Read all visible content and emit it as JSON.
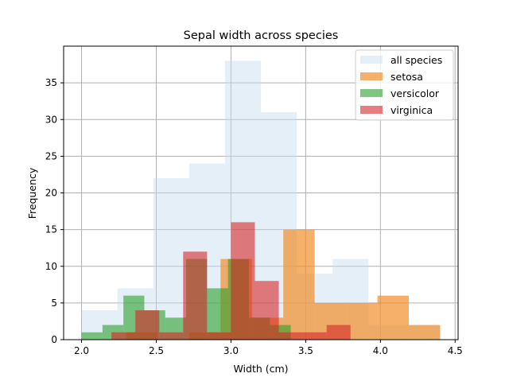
{
  "chart_data": {
    "type": "bar",
    "title": "Sepal width across species",
    "xlabel": "Width (cm)",
    "ylabel": "Frequency",
    "xlim": [
      1.88,
      4.52
    ],
    "ylim": [
      0,
      40
    ],
    "xticks": [
      "2.0",
      "2.5",
      "3.0",
      "3.5",
      "4.0",
      "4.5"
    ],
    "xtick_values": [
      2.0,
      2.5,
      3.0,
      3.5,
      4.0,
      4.5
    ],
    "yticks": [
      "0",
      "5",
      "10",
      "15",
      "20",
      "25",
      "30",
      "35"
    ],
    "ytick_values": [
      0,
      5,
      10,
      15,
      20,
      25,
      30,
      35
    ],
    "grid": true,
    "legend_position": "top-right",
    "series": [
      {
        "name": "all species",
        "color": "#c6dbef",
        "opacity": 0.45,
        "bins": [
          2.0,
          2.24,
          2.48,
          2.72,
          2.96,
          3.2,
          3.44,
          3.68,
          3.92,
          4.16,
          4.4
        ],
        "values": [
          4,
          7,
          22,
          24,
          38,
          31,
          9,
          11,
          2,
          2
        ]
      },
      {
        "name": "setosa",
        "color": "#f28e2b",
        "opacity": 0.7,
        "bins": [
          2.3,
          2.51,
          2.72,
          2.93,
          3.14,
          3.35,
          3.56,
          3.77,
          3.98,
          4.19,
          4.4
        ],
        "values": [
          1,
          0,
          1,
          11,
          3,
          15,
          5,
          5,
          6,
          2
        ]
      },
      {
        "name": "versicolor",
        "color": "#2ca02c",
        "opacity": 0.6,
        "bins": [
          2.0,
          2.14,
          2.28,
          2.42,
          2.56,
          2.7,
          2.84,
          2.98,
          3.12,
          3.26,
          3.4
        ],
        "values": [
          1,
          2,
          6,
          4,
          3,
          11,
          7,
          11,
          3,
          2
        ]
      },
      {
        "name": "virginica",
        "color": "#d62728",
        "opacity": 0.6,
        "bins": [
          2.2,
          2.36,
          2.52,
          2.68,
          2.84,
          3.0,
          3.16,
          3.32,
          3.48,
          3.64,
          3.8
        ],
        "values": [
          1,
          4,
          1,
          12,
          1,
          16,
          8,
          1,
          1,
          2
        ]
      }
    ]
  }
}
